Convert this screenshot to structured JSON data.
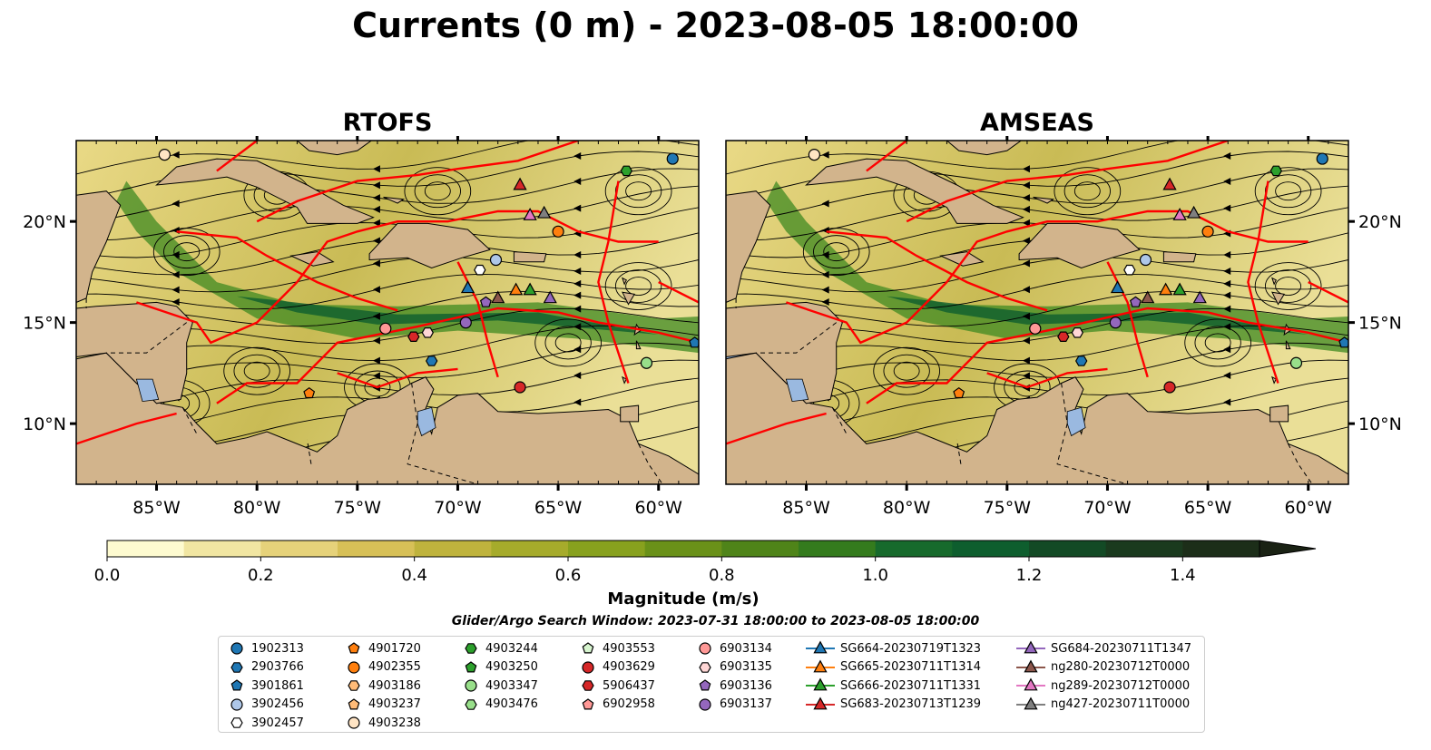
{
  "title": "Currents (0 m) - 2023-08-05 18:00:00",
  "panels": [
    {
      "title": "RTOFS"
    },
    {
      "title": "AMSEAS"
    }
  ],
  "map": {
    "lon_range": [
      -89.0,
      -58.0
    ],
    "lat_range": [
      7.0,
      24.0
    ],
    "lon_ticks": [
      "85°W",
      "80°W",
      "75°W",
      "70°W",
      "65°W",
      "60°W"
    ],
    "lat_ticks": [
      "20°N",
      "15°N",
      "10°N"
    ],
    "colors": {
      "land": "#d2b48c",
      "lake": "#9ab9e0",
      "ocean_low": "#fdf7c3",
      "eez": "#ff0000",
      "streamline": "#000000"
    }
  },
  "colorbar": {
    "label": "Magnitude (m/s)",
    "ticks": [
      "0.0",
      "0.2",
      "0.4",
      "0.6",
      "0.8",
      "1.0",
      "1.2",
      "1.4"
    ],
    "colors": [
      "#fefbd0",
      "#f1e6a2",
      "#e6d27a",
      "#d7c057",
      "#bfb33d",
      "#a6ab2b",
      "#88a11e",
      "#6a9119",
      "#4f8419",
      "#347b1d",
      "#176a2c",
      "#0e5e2e",
      "#134a25",
      "#1a3a1e",
      "#1c2e19",
      "#1a2214"
    ]
  },
  "search_window": "Glider/Argo Search Window: 2023-07-31 18:00:00 to 2023-08-05 18:00:00",
  "legend": [
    {
      "label": "1902313",
      "marker": "circle",
      "color": "#1f77b4"
    },
    {
      "label": "2903766",
      "marker": "hexagon",
      "color": "#1f77b4"
    },
    {
      "label": "3901861",
      "marker": "pentagon",
      "color": "#1f77b4"
    },
    {
      "label": "3902456",
      "marker": "circle",
      "color": "#aec7e8"
    },
    {
      "label": "3902457",
      "marker": "hexagon",
      "color": "#ffffff"
    },
    {
      "label": "4901720",
      "marker": "pentagon",
      "color": "#ff7f0e"
    },
    {
      "label": "4902355",
      "marker": "circle",
      "color": "#ff7f0e"
    },
    {
      "label": "4903186",
      "marker": "hexagon",
      "color": "#ffbb78"
    },
    {
      "label": "4903237",
      "marker": "pentagon",
      "color": "#ffbb78"
    },
    {
      "label": "4903238",
      "marker": "circle",
      "color": "#ffe4c4"
    },
    {
      "label": "4903244",
      "marker": "hexagon",
      "color": "#2ca02c"
    },
    {
      "label": "4903250",
      "marker": "pentagon",
      "color": "#2ca02c"
    },
    {
      "label": "4903347",
      "marker": "circle",
      "color": "#98df8a"
    },
    {
      "label": "4903476",
      "marker": "hexagon",
      "color": "#98df8a"
    },
    {
      "label": "4903553",
      "marker": "pentagon",
      "color": "#d7f5cf"
    },
    {
      "label": "4903629",
      "marker": "circle",
      "color": "#d62728"
    },
    {
      "label": "5906437",
      "marker": "hexagon",
      "color": "#d62728"
    },
    {
      "label": "6902958",
      "marker": "pentagon",
      "color": "#ff9896"
    },
    {
      "label": "6903134",
      "marker": "circle",
      "color": "#ff9896"
    },
    {
      "label": "6903135",
      "marker": "hexagon",
      "color": "#ffd6d5"
    },
    {
      "label": "6903136",
      "marker": "pentagon",
      "color": "#9467bd"
    },
    {
      "label": "6903137",
      "marker": "circle",
      "color": "#9467bd"
    },
    {
      "label": "SG664-20230719T1323",
      "marker": "triangle",
      "color": "#1f77b4"
    },
    {
      "label": "SG665-20230711T1314",
      "marker": "triangle",
      "color": "#ff7f0e"
    },
    {
      "label": "SG666-20230711T1331",
      "marker": "triangle",
      "color": "#2ca02c"
    },
    {
      "label": "SG683-20230713T1239",
      "marker": "triangle",
      "color": "#d62728"
    },
    {
      "label": "SG684-20230711T1347",
      "marker": "triangle",
      "color": "#9467bd"
    },
    {
      "label": "ng280-20230712T0000",
      "marker": "triangle",
      "color": "#8c564b"
    },
    {
      "label": "ng289-20230712T0000",
      "marker": "triangle",
      "color": "#e377c2"
    },
    {
      "label": "ng427-20230711T0000",
      "marker": "triangle",
      "color": "#7f7f7f"
    }
  ],
  "platforms": [
    {
      "id": "1902313",
      "lon": -59.3,
      "lat": 23.1
    },
    {
      "id": "2903766",
      "lon": -71.3,
      "lat": 13.1
    },
    {
      "id": "3901861",
      "lon": -58.2,
      "lat": 14.0
    },
    {
      "id": "3902456",
      "lon": -68.1,
      "lat": 18.1
    },
    {
      "id": "3902457",
      "lon": -68.9,
      "lat": 17.6
    },
    {
      "id": "4901720",
      "lon": -77.4,
      "lat": 11.5
    },
    {
      "id": "4902355",
      "lon": -65.0,
      "lat": 19.5
    },
    {
      "id": "4903238",
      "lon": -84.6,
      "lat": 23.3
    },
    {
      "id": "4903244",
      "lon": -61.6,
      "lat": 22.5
    },
    {
      "id": "4903347",
      "lon": -60.6,
      "lat": 13.0
    },
    {
      "id": "4903629",
      "lon": -66.9,
      "lat": 11.8
    },
    {
      "id": "5906437",
      "lon": -72.2,
      "lat": 14.3
    },
    {
      "id": "6903134",
      "lon": -73.6,
      "lat": 14.7
    },
    {
      "id": "6903135",
      "lon": -71.5,
      "lat": 14.5
    },
    {
      "id": "6903136",
      "lon": -68.6,
      "lat": 16.0
    },
    {
      "id": "6903137",
      "lon": -69.6,
      "lat": 15.0
    },
    {
      "id": "SG664-20230719T1323",
      "lon": -69.5,
      "lat": 16.7
    },
    {
      "id": "SG665-20230711T1314",
      "lon": -67.1,
      "lat": 16.6
    },
    {
      "id": "SG666-20230711T1331",
      "lon": -66.4,
      "lat": 16.6
    },
    {
      "id": "SG683-20230713T1239",
      "lon": -66.9,
      "lat": 21.8
    },
    {
      "id": "SG684-20230711T1347",
      "lon": -65.4,
      "lat": 16.2
    },
    {
      "id": "ng280-20230712T0000",
      "lon": -68.0,
      "lat": 16.2
    },
    {
      "id": "ng289-20230712T0000",
      "lon": -66.4,
      "lat": 20.3
    },
    {
      "id": "ng427-20230711T0000",
      "lon": -65.7,
      "lat": 20.4
    }
  ]
}
